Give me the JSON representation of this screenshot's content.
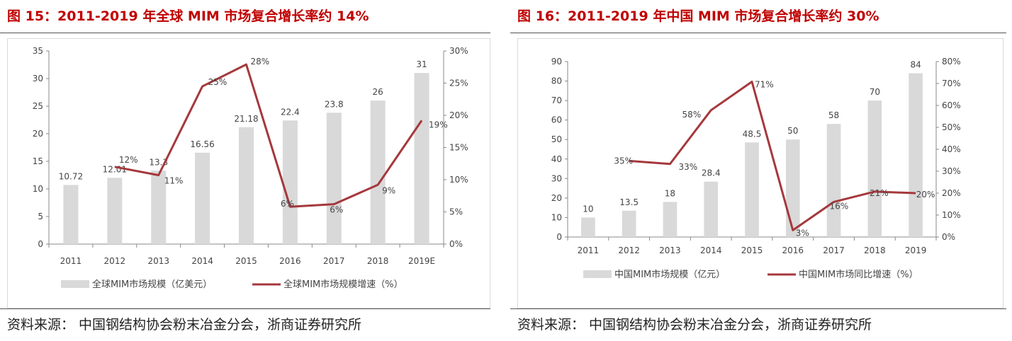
{
  "left": {
    "title": "图 15：2011-2019 年全球 MIM 市场复合增长率约 14%",
    "source": "资料来源：  中国钢结构协会粉末冶金分会，浙商证券研究所",
    "legend_bar": "全球MIM市场规模（亿美元）",
    "legend_line": "全球MIM市场规模增速（%）"
  },
  "right": {
    "title": "图 16：2011-2019 年中国 MIM 市场复合增长率约 30%",
    "source": "资料来源：  中国钢结构协会粉末冶金分会，浙商证券研究所",
    "legend_bar": "中国MIM市场规模（亿元）",
    "legend_line": "中国MIM市场同比增速（%）"
  },
  "colors": {
    "title": "#c00000",
    "bar": "#d9d9d9",
    "line": "#a5383c"
  },
  "chart_data": [
    {
      "type": "bar+line",
      "title": "图 15：2011-2019 年全球 MIM 市场复合增长率约 14%",
      "categories": [
        "2011",
        "2012",
        "2013",
        "2014",
        "2015",
        "2016",
        "2017",
        "2018",
        "2019E"
      ],
      "series": [
        {
          "name": "全球MIM市场规模（亿美元）",
          "type": "bar",
          "axis": "left",
          "values": [
            10.72,
            12.01,
            13.3,
            16.56,
            21.18,
            22.4,
            23.8,
            26,
            31
          ],
          "labels": [
            "10.72",
            "12.01",
            "13.3",
            "16.56",
            "21.18",
            "22.4",
            "23.8",
            "26",
            "31"
          ]
        },
        {
          "name": "全球MIM市场规模增速（%）",
          "type": "line",
          "axis": "right",
          "values": [
            null,
            12,
            10.7,
            24.5,
            27.9,
            5.8,
            6.2,
            9.2,
            19.2
          ],
          "labels": [
            "",
            "12%",
            "11%",
            "25%",
            "28%",
            "6%",
            "6%",
            "9%",
            "19%"
          ]
        }
      ],
      "ylim": [
        0,
        35
      ],
      "yticks": [
        "0",
        "5",
        "10",
        "15",
        "20",
        "25",
        "30",
        "35"
      ],
      "y2lim": [
        0,
        30
      ],
      "y2ticks": [
        "0%",
        "5%",
        "10%",
        "15%",
        "20%",
        "25%",
        "30%"
      ],
      "legend": "bottom",
      "grid": false
    },
    {
      "type": "bar+line",
      "title": "图 16：2011-2019 年中国 MIM 市场复合增长率约 30%",
      "categories": [
        "2011",
        "2012",
        "2013",
        "2014",
        "2015",
        "2016",
        "2017",
        "2018",
        "2019"
      ],
      "series": [
        {
          "name": "中国MIM市场规模（亿元）",
          "type": "bar",
          "axis": "left",
          "values": [
            10,
            13.5,
            18,
            28.4,
            48.5,
            50,
            58,
            70,
            84
          ],
          "labels": [
            "10",
            "13.5",
            "18",
            "28.4",
            "48.5",
            "50",
            "58",
            "70",
            "84"
          ]
        },
        {
          "name": "中国MIM市场同比增速（%）",
          "type": "line",
          "axis": "right",
          "values": [
            null,
            34.7,
            33.3,
            57.8,
            70.8,
            3.1,
            16,
            20.7,
            20
          ],
          "labels": [
            "",
            "35%",
            "33%",
            "58%",
            "71%",
            "3%",
            "16%",
            "21%",
            "20%"
          ]
        }
      ],
      "ylim": [
        0,
        90
      ],
      "yticks": [
        "0",
        "10",
        "20",
        "30",
        "40",
        "50",
        "60",
        "70",
        "80",
        "90"
      ],
      "y2lim": [
        0,
        80
      ],
      "y2ticks": [
        "0%",
        "10%",
        "20%",
        "30%",
        "40%",
        "50%",
        "60%",
        "70%",
        "80%"
      ],
      "legend": "bottom",
      "grid": false
    }
  ]
}
